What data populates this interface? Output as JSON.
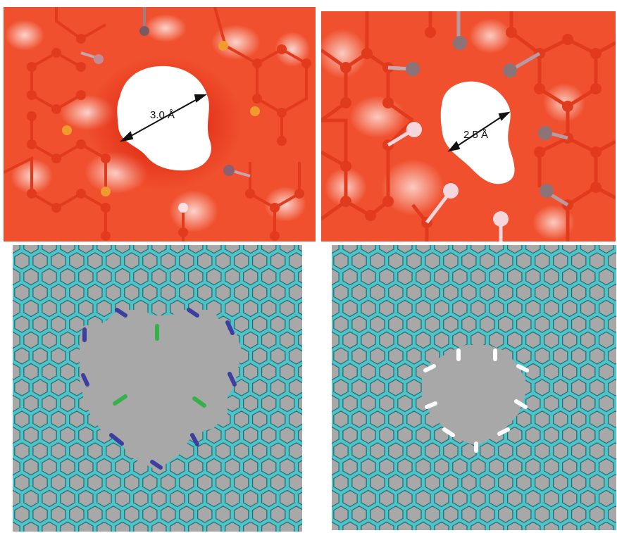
{
  "panels": [
    {
      "id": "a",
      "pore_label": "3.0 Å",
      "style": "surface",
      "colors": {
        "background": "#f0502e",
        "lattice": "#e23a1d",
        "pore": "#ffffff",
        "decoration_a": "#f09b2e",
        "decoration_b": "#c48a96",
        "highlight": "#fbe0e4"
      }
    },
    {
      "id": "b",
      "pore_label": "2.5 Å",
      "style": "surface",
      "colors": {
        "background": "#f0502e",
        "lattice": "#e23a1d",
        "pore": "#ffffff",
        "decoration_a": "#8c7378",
        "decoration_b": "#f4d6dc",
        "highlight": "#fbe0e4"
      }
    },
    {
      "id": "c",
      "style": "stick",
      "colors": {
        "background": "#a8a8a8",
        "bond": "#4fc3c8",
        "nitrogen": "#3c3fa0",
        "fluorine": "#36b04a"
      }
    },
    {
      "id": "d",
      "style": "stick",
      "colors": {
        "background": "#a8a8a8",
        "bond": "#4fc3c8",
        "hydrogen": "#ffffff"
      }
    }
  ]
}
